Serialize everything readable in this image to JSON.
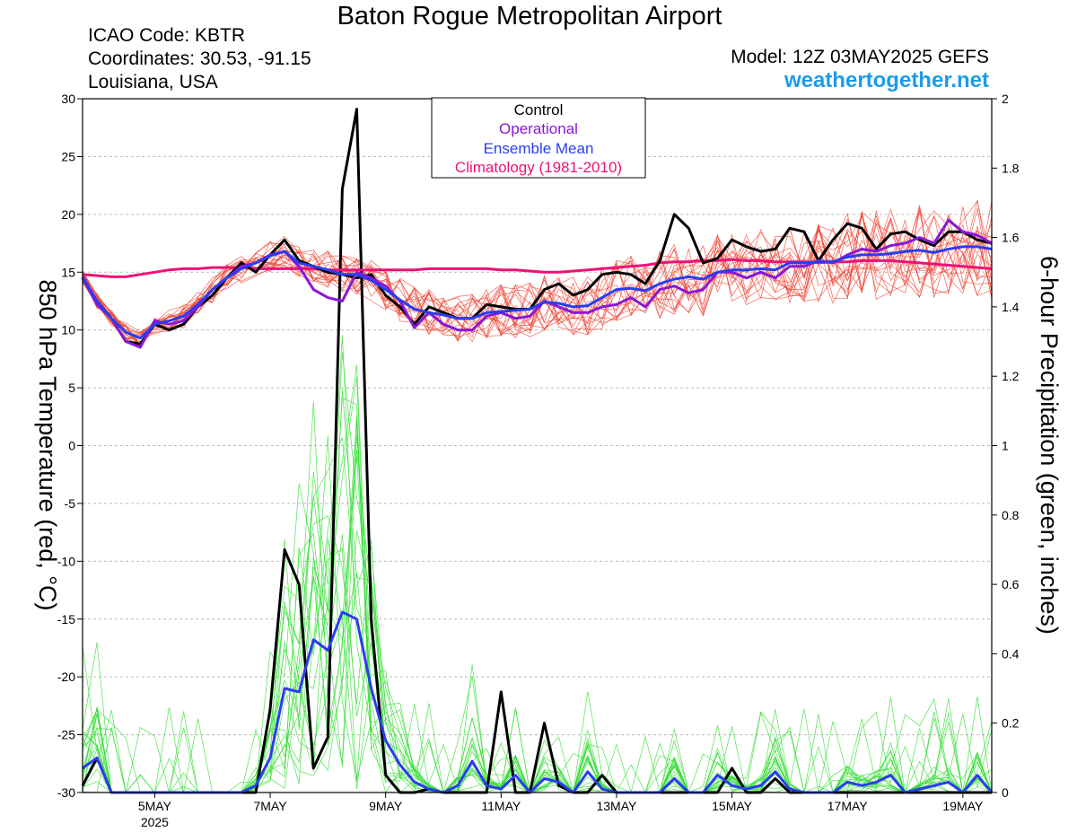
{
  "header": {
    "title": "Baton Rogue Metropolitan Airport",
    "icao": "ICAO Code: KBTR",
    "coordinates": "Coordinates: 30.53, -91.15",
    "location": "Louisiana, USA",
    "model": "Model: 12Z 03MAY2025 GEFS",
    "website": "weathertogether.net"
  },
  "colors": {
    "control": "#000000",
    "operational": "#8a17d6",
    "ensemble_mean": "#2a3df0",
    "climatology": "#ee1177",
    "members_temperature": "#f04030",
    "members_precip": "#33dd33",
    "website": "#1e9be8"
  },
  "chart_data": {
    "type": "line",
    "ylabel": "850 hPa Temperature (red, °C)",
    "y2label": "6-hour Precipitation (green, inches)",
    "ylim": [
      -30,
      30
    ],
    "y2lim": [
      0,
      2
    ],
    "yticks": [
      30,
      25,
      20,
      15,
      10,
      5,
      0,
      -5,
      -10,
      -15,
      -20,
      -25,
      -30
    ],
    "y2ticks": [
      2,
      1.8,
      1.6,
      1.4,
      1.2,
      1,
      0.8,
      0.6,
      0.4,
      0.2,
      0
    ],
    "xlim": [
      3.75,
      19.5
    ],
    "xticks": [
      {
        "x": 5,
        "label": "5MAY",
        "sublabel": "2025"
      },
      {
        "x": 7,
        "label": "7MAY"
      },
      {
        "x": 9,
        "label": "9MAY"
      },
      {
        "x": 11,
        "label": "11MAY"
      },
      {
        "x": 13,
        "label": "13MAY"
      },
      {
        "x": 15,
        "label": "15MAY"
      },
      {
        "x": 17,
        "label": "17MAY"
      },
      {
        "x": 19,
        "label": "19MAY"
      }
    ],
    "grid": "horizontal dashed",
    "legend": {
      "placement": "top-center",
      "entries": [
        "Control",
        "Operational",
        "Ensemble Mean",
        "Climatology (1981-2010)"
      ]
    },
    "temperature_x": [
      3.75,
      4.0,
      4.25,
      4.5,
      4.75,
      5.0,
      5.25,
      5.5,
      5.75,
      6.0,
      6.25,
      6.5,
      6.75,
      7.0,
      7.25,
      7.5,
      7.75,
      8.0,
      8.25,
      8.5,
      8.75,
      9.0,
      9.25,
      9.5,
      9.75,
      10.0,
      10.25,
      10.5,
      10.75,
      11.0,
      11.25,
      11.5,
      11.75,
      12.0,
      12.25,
      12.5,
      12.75,
      13.0,
      13.25,
      13.5,
      13.75,
      14.0,
      14.25,
      14.5,
      14.75,
      15.0,
      15.25,
      15.5,
      15.75,
      16.0,
      16.25,
      16.5,
      16.75,
      17.0,
      17.25,
      17.5,
      17.75,
      18.0,
      18.25,
      18.5,
      18.75,
      19.0,
      19.25,
      19.5
    ],
    "temperature_series": [
      {
        "name": "Control",
        "values": [
          14.5,
          12.5,
          11,
          9,
          8.8,
          10.5,
          10,
          10.5,
          12,
          13,
          14.5,
          15.8,
          15,
          16.5,
          17.8,
          16,
          15.5,
          15,
          14.8,
          14.5,
          14.8,
          13,
          12,
          10.5,
          12,
          11.5,
          11,
          11,
          12.2,
          12,
          11.8,
          11.8,
          13.5,
          14,
          13,
          13.5,
          14.8,
          15,
          14.8,
          14,
          16,
          20,
          18.8,
          15.8,
          16.2,
          17.8,
          17.2,
          16.8,
          17,
          18.8,
          18.5,
          16,
          17.8,
          19.2,
          18.8,
          17,
          18.3,
          18.5,
          17.8,
          17.3,
          18.5,
          18.5,
          17.8,
          17.5
        ]
      },
      {
        "name": "Operational",
        "values": [
          14.5,
          12.2,
          11,
          9,
          8.5,
          10.8,
          10.5,
          10.8,
          12,
          13.5,
          14.5,
          15.5,
          15.8,
          16.5,
          16.8,
          15.5,
          13.5,
          12.8,
          12.5,
          15,
          14.5,
          13.8,
          12.5,
          10.2,
          11.5,
          10.5,
          10,
          10,
          11.2,
          11.5,
          11,
          11.2,
          12.5,
          12,
          11.5,
          11.5,
          12,
          12.2,
          12.8,
          12,
          13.5,
          13.8,
          13.2,
          13.5,
          15,
          15,
          14.5,
          15,
          14.5,
          15.5,
          15.5,
          16,
          15.8,
          16.5,
          17,
          16.8,
          17.3,
          17.5,
          18,
          17.5,
          19.5,
          18.5,
          18.2,
          17.5
        ]
      },
      {
        "name": "Ensemble Mean",
        "values": [
          14.6,
          12.5,
          11,
          9.8,
          9.3,
          10.5,
          10.8,
          11.2,
          12.2,
          13.5,
          14.5,
          15.3,
          15.8,
          16.4,
          16.8,
          15.8,
          15.5,
          15.2,
          14.8,
          14.8,
          14.3,
          13.5,
          12.6,
          11.8,
          11.5,
          11.3,
          11,
          11,
          11.5,
          11.6,
          11.7,
          11.8,
          12.4,
          12.3,
          12,
          12.1,
          12.8,
          13.5,
          13.6,
          13.4,
          14,
          14.4,
          14.6,
          14.4,
          15,
          15.2,
          15.2,
          15.3,
          15.2,
          15.8,
          15.8,
          15.9,
          15.9,
          16.3,
          16.5,
          16.5,
          16.6,
          16.8,
          16.9,
          16.7,
          17,
          17.2,
          17.2,
          17
        ]
      },
      {
        "name": "Climatology (1981-2010)",
        "values": [
          14.8,
          14.7,
          14.6,
          14.6,
          14.8,
          15,
          15.2,
          15.3,
          15.3,
          15.4,
          15.4,
          15.4,
          15.3,
          15.3,
          15.3,
          15.3,
          15.3,
          15.2,
          15.2,
          15.2,
          15.2,
          15.2,
          15.2,
          15.2,
          15.3,
          15.3,
          15.3,
          15.3,
          15.3,
          15.2,
          15.2,
          15.1,
          15,
          15,
          15.1,
          15.2,
          15.3,
          15.4,
          15.5,
          15.6,
          15.8,
          15.9,
          15.9,
          16,
          16,
          16.1,
          16,
          16,
          15.9,
          15.9,
          15.9,
          15.8,
          15.9,
          15.9,
          16,
          16,
          16,
          15.9,
          15.8,
          15.7,
          15.6,
          15.5,
          15.4,
          15.3
        ]
      }
    ],
    "precip_x": [
      3.75,
      4.0,
      4.25,
      4.5,
      4.75,
      5.0,
      5.25,
      5.5,
      5.75,
      6.0,
      6.25,
      6.5,
      6.75,
      7.0,
      7.25,
      7.5,
      7.75,
      8.0,
      8.25,
      8.5,
      8.75,
      9.0,
      9.25,
      9.5,
      9.75,
      10.0,
      10.25,
      10.5,
      10.75,
      11.0,
      11.25,
      11.5,
      11.75,
      12.0,
      12.25,
      12.5,
      12.75,
      13.0,
      13.25,
      13.5,
      13.75,
      14.0,
      14.25,
      14.5,
      14.75,
      15.0,
      15.25,
      15.5,
      15.75,
      16.0,
      16.25,
      16.5,
      16.75,
      17.0,
      17.25,
      17.5,
      17.75,
      18.0,
      18.25,
      18.5,
      18.75,
      19.0,
      19.25,
      19.5
    ],
    "precip_series": [
      {
        "name": "Control",
        "values": [
          0.02,
          0.1,
          0,
          0,
          0,
          0,
          0,
          0,
          0,
          0,
          0,
          0,
          0,
          0.24,
          0.7,
          0.6,
          0.07,
          0.16,
          1.74,
          1.97,
          0.5,
          0.05,
          0,
          0,
          0.01,
          0,
          0,
          0,
          0,
          0.29,
          0,
          0,
          0.2,
          0.02,
          0,
          0,
          0.05,
          0,
          0,
          0,
          0,
          0,
          0,
          0,
          0,
          0.07,
          0,
          0,
          0.04,
          0,
          0,
          0,
          0,
          0,
          0,
          0,
          0,
          0,
          0,
          0,
          0,
          0,
          0,
          0
        ]
      },
      {
        "name": "Ensemble Mean",
        "values": [
          0.07,
          0.1,
          0,
          0,
          0,
          0,
          0,
          0,
          0,
          0,
          0,
          0,
          0.02,
          0.1,
          0.3,
          0.29,
          0.44,
          0.41,
          0.52,
          0.5,
          0.3,
          0.15,
          0.08,
          0.03,
          0.01,
          0,
          0.02,
          0.09,
          0.02,
          0.01,
          0.05,
          0,
          0.04,
          0.03,
          0,
          0.06,
          0.01,
          0,
          0,
          0,
          0,
          0.04,
          0,
          0,
          0.05,
          0.02,
          0.01,
          0.02,
          0.06,
          0.01,
          0,
          0,
          0,
          0.03,
          0.02,
          0.03,
          0.05,
          0,
          0.01,
          0.02,
          0.03,
          0,
          0.05,
          0
        ]
      }
    ]
  }
}
